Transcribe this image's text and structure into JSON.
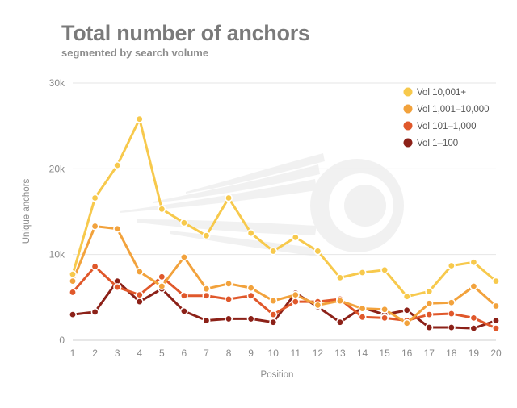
{
  "chart_data": {
    "type": "line",
    "title": "Total number of anchors",
    "subtitle": "segmented by search volume",
    "xlabel": "Position",
    "ylabel": "Unique anchors",
    "x": [
      1,
      2,
      3,
      4,
      5,
      6,
      7,
      8,
      9,
      10,
      11,
      12,
      13,
      14,
      15,
      16,
      17,
      18,
      19,
      20
    ],
    "ylim": [
      0,
      30000
    ],
    "yticks": [
      0,
      10000,
      20000,
      30000
    ],
    "ytick_labels": [
      "0",
      "10k",
      "20k",
      "30k"
    ],
    "grid": "horizontal",
    "legend_position": "top-right",
    "series": [
      {
        "name": "Vol 10,001+",
        "color": "#f7c94c",
        "values": [
          7700,
          16600,
          20400,
          25800,
          15300,
          13700,
          12200,
          16600,
          12500,
          10400,
          12000,
          10400,
          7300,
          7900,
          8200,
          5100,
          5700,
          8700,
          9100,
          6900
        ]
      },
      {
        "name": "Vol 1,001–10,000",
        "color": "#f2a23c",
        "values": [
          6900,
          13300,
          13000,
          8000,
          6300,
          9700,
          6000,
          6600,
          6100,
          4600,
          5300,
          4100,
          4600,
          3700,
          3600,
          2000,
          4300,
          4400,
          6300,
          4000
        ]
      },
      {
        "name": "Vol 101–1,000",
        "color": "#e0582b",
        "values": [
          5600,
          8600,
          6200,
          5300,
          7400,
          5200,
          5200,
          4800,
          5200,
          3000,
          4500,
          4500,
          4800,
          2700,
          2600,
          2300,
          3000,
          3100,
          2600,
          1400
        ]
      },
      {
        "name": "Vol 1–100",
        "color": "#8c2118",
        "values": [
          3000,
          3300,
          6900,
          4500,
          6000,
          3400,
          2300,
          2500,
          2500,
          2100,
          5500,
          3900,
          2100,
          3800,
          3000,
          3500,
          1500,
          1500,
          1400,
          2300
        ]
      }
    ]
  }
}
